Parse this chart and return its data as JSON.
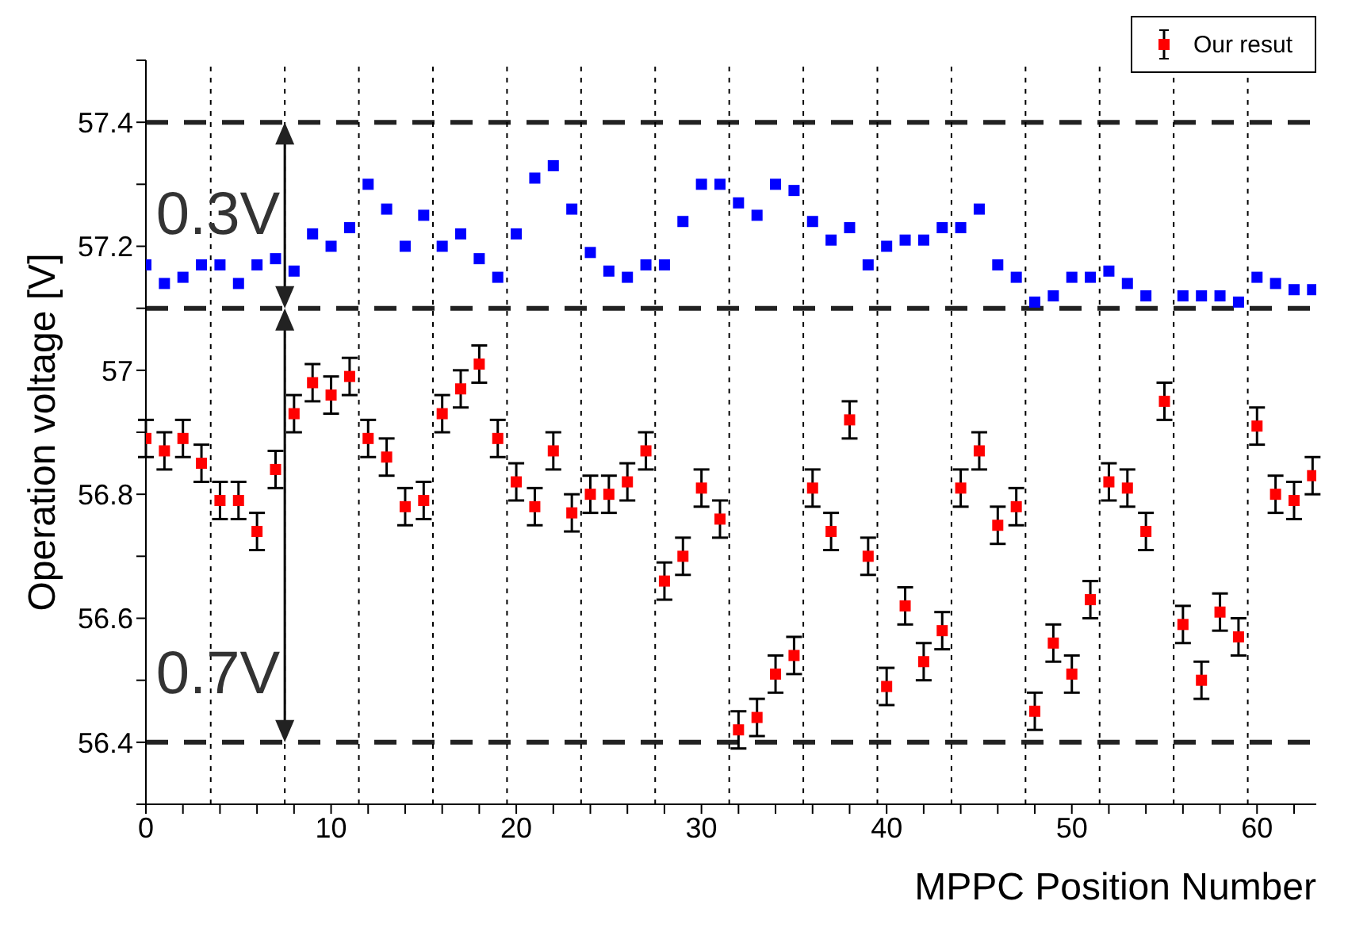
{
  "chart_data": {
    "type": "scatter",
    "xlabel": "MPPC Position Number",
    "ylabel": "Operation voltage [V]",
    "x": [
      0,
      1,
      2,
      3,
      4,
      5,
      6,
      7,
      8,
      9,
      10,
      11,
      12,
      13,
      14,
      15,
      16,
      17,
      18,
      19,
      20,
      21,
      22,
      23,
      24,
      25,
      26,
      27,
      28,
      29,
      30,
      31,
      32,
      33,
      34,
      35,
      36,
      37,
      38,
      39,
      40,
      41,
      42,
      43,
      44,
      45,
      46,
      47,
      48,
      49,
      50,
      51,
      52,
      53,
      54,
      55,
      56,
      57,
      58,
      59,
      60,
      61,
      62,
      63
    ],
    "series": [
      {
        "color": "#0000ff",
        "values": [
          57.17,
          57.14,
          57.15,
          57.17,
          57.17,
          57.14,
          57.17,
          57.18,
          57.16,
          57.22,
          57.2,
          57.23,
          57.3,
          57.26,
          57.2,
          57.25,
          57.2,
          57.22,
          57.18,
          57.15,
          57.22,
          57.31,
          57.33,
          57.26,
          57.19,
          57.16,
          57.15,
          57.17,
          57.17,
          57.24,
          57.3,
          57.3,
          57.27,
          57.25,
          57.3,
          57.29,
          57.24,
          57.21,
          57.23,
          57.17,
          57.2,
          57.21,
          57.21,
          57.23,
          57.23,
          57.26,
          57.17,
          57.15,
          57.11,
          57.12,
          57.15,
          57.15,
          57.16,
          57.14,
          57.12,
          null,
          57.12,
          57.12,
          57.12,
          57.11,
          57.15,
          57.14,
          57.13,
          57.13
        ]
      },
      {
        "name": "Our resut",
        "color": "#ff0000",
        "values": [
          56.89,
          56.87,
          56.89,
          56.85,
          56.79,
          56.79,
          56.74,
          56.84,
          56.93,
          56.98,
          56.96,
          56.99,
          56.89,
          56.86,
          56.78,
          56.79,
          56.93,
          56.97,
          57.01,
          56.89,
          56.82,
          56.78,
          56.87,
          56.77,
          56.8,
          56.8,
          56.82,
          56.87,
          56.66,
          56.7,
          56.81,
          56.76,
          56.42,
          56.44,
          56.51,
          56.54,
          56.81,
          56.74,
          56.92,
          56.7,
          56.49,
          56.62,
          56.53,
          56.58,
          56.81,
          56.87,
          56.75,
          56.78,
          56.45,
          56.56,
          56.51,
          56.63,
          56.82,
          56.81,
          56.74,
          56.95,
          56.59,
          56.5,
          56.61,
          56.57,
          56.91,
          56.8,
          56.79,
          56.83
        ],
        "errors": [
          0.03,
          0.03,
          0.03,
          0.03,
          0.03,
          0.03,
          0.03,
          0.03,
          0.03,
          0.03,
          0.03,
          0.03,
          0.03,
          0.03,
          0.03,
          0.03,
          0.03,
          0.03,
          0.03,
          0.03,
          0.03,
          0.03,
          0.03,
          0.03,
          0.03,
          0.03,
          0.03,
          0.03,
          0.03,
          0.03,
          0.03,
          0.03,
          0.03,
          0.03,
          0.03,
          0.03,
          0.03,
          0.03,
          0.03,
          0.03,
          0.03,
          0.03,
          0.03,
          0.03,
          0.03,
          0.03,
          0.03,
          0.03,
          0.03,
          0.03,
          0.03,
          0.03,
          0.03,
          0.03,
          0.03,
          0.03,
          0.03,
          0.03,
          0.03,
          0.03,
          0.03,
          0.03,
          0.03,
          0.03
        ]
      }
    ],
    "xlim": [
      0,
      63.2
    ],
    "xticks": [
      0,
      {
        "value": 2,
        "label": null
      },
      {
        "value": 4,
        "label": null
      },
      {
        "value": 6,
        "label": null
      },
      {
        "value": 8,
        "label": null
      },
      10,
      {
        "value": 12,
        "label": null
      },
      {
        "value": 14,
        "label": null
      },
      {
        "value": 16,
        "label": null
      },
      {
        "value": 18,
        "label": null
      },
      20,
      {
        "value": 22,
        "label": null
      },
      {
        "value": 24,
        "label": null
      },
      {
        "value": 26,
        "label": null
      },
      {
        "value": 28,
        "label": null
      },
      30,
      {
        "value": 32,
        "label": null
      },
      {
        "value": 34,
        "label": null
      },
      {
        "value": 36,
        "label": null
      },
      {
        "value": 38,
        "label": null
      },
      40,
      {
        "value": 42,
        "label": null
      },
      {
        "value": 44,
        "label": null
      },
      {
        "value": 46,
        "label": null
      },
      {
        "value": 48,
        "label": null
      },
      50,
      {
        "value": 52,
        "label": null
      },
      {
        "value": 54,
        "label": null
      },
      {
        "value": 56,
        "label": null
      },
      {
        "value": 58,
        "label": null
      },
      60,
      {
        "value": 62,
        "label": null
      }
    ],
    "ylim": [
      56.3,
      57.5
    ],
    "yticks": [
      {
        "value": 56.3,
        "label": null
      },
      56.4,
      {
        "value": 56.5,
        "label": null
      },
      56.6,
      {
        "value": 56.7,
        "label": null
      },
      56.8,
      {
        "value": 56.9,
        "label": null
      },
      57,
      {
        "value": 57.1,
        "label": null
      },
      57.2,
      {
        "value": 57.3,
        "label": null
      },
      57.4,
      {
        "value": 57.5,
        "label": null
      }
    ],
    "ref_lines": [
      {
        "axis": "y",
        "value": 57.4,
        "color": "#222222",
        "line_style": "dashed"
      },
      {
        "axis": "y",
        "value": 57.1,
        "color": "#222222",
        "line_style": "dashed"
      },
      {
        "axis": "y",
        "value": 56.4,
        "color": "#222222",
        "line_style": "dashed"
      },
      {
        "axis": "x",
        "value": 3.5,
        "color": "#000000",
        "line_style": "dotted"
      },
      {
        "axis": "x",
        "value": 7.5,
        "color": "#000000",
        "line_style": "dotted"
      },
      {
        "axis": "x",
        "value": 11.5,
        "color": "#000000",
        "line_style": "dotted"
      },
      {
        "axis": "x",
        "value": 15.5,
        "color": "#000000",
        "line_style": "dotted"
      },
      {
        "axis": "x",
        "value": 19.5,
        "color": "#000000",
        "line_style": "dotted"
      },
      {
        "axis": "x",
        "value": 23.5,
        "color": "#000000",
        "line_style": "dotted"
      },
      {
        "axis": "x",
        "value": 27.5,
        "color": "#000000",
        "line_style": "dotted"
      },
      {
        "axis": "x",
        "value": 31.5,
        "color": "#000000",
        "line_style": "dotted"
      },
      {
        "axis": "x",
        "value": 35.5,
        "color": "#000000",
        "line_style": "dotted"
      },
      {
        "axis": "x",
        "value": 39.5,
        "color": "#000000",
        "line_style": "dotted"
      },
      {
        "axis": "x",
        "value": 43.5,
        "color": "#000000",
        "line_style": "dotted"
      },
      {
        "axis": "x",
        "value": 47.5,
        "color": "#000000",
        "line_style": "dotted"
      },
      {
        "axis": "x",
        "value": 51.5,
        "color": "#000000",
        "line_style": "dotted"
      },
      {
        "axis": "x",
        "value": 55.5,
        "color": "#000000",
        "line_style": "dotted"
      },
      {
        "axis": "x",
        "value": 59.5,
        "color": "#000000",
        "line_style": "dotted"
      }
    ],
    "annotations": [
      {
        "text": "0.3V",
        "x": 7.5,
        "y": 57.25
      },
      {
        "text": "0.7V",
        "x": 7.5,
        "y": 56.51
      }
    ],
    "marker": "square",
    "legend": "top right",
    "grid": false
  }
}
